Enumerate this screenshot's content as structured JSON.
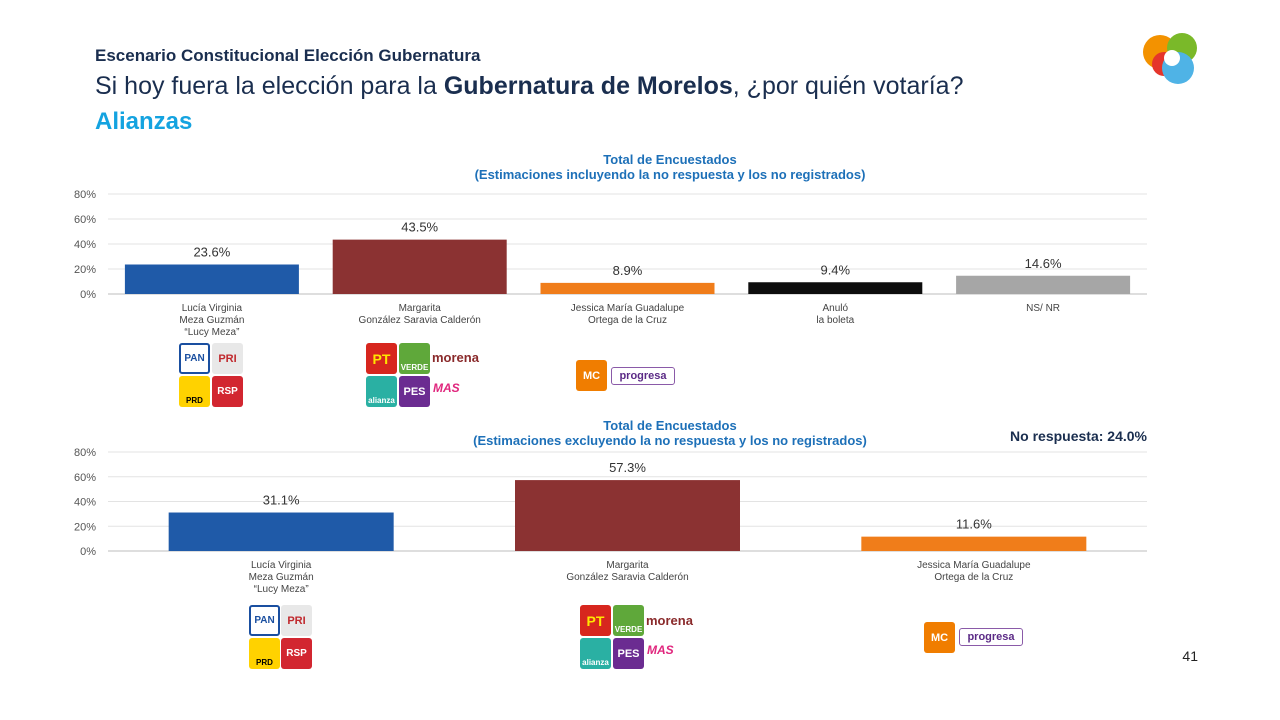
{
  "header": {
    "subtitle": "Escenario Constitucional Elección Gubernatura",
    "question_pre": "Si hoy fuera la elección para la ",
    "question_bold": "Gubernatura de Morelos",
    "question_post": ", ¿por quién votaría?",
    "section": "Alianzas"
  },
  "chart1": {
    "title_line1": "Total de Encuestados",
    "title_line2": "(Estimaciones incluyendo la no respuesta y los no registrados)"
  },
  "chart2": {
    "title_line1": "Total de Encuestados",
    "title_line2": "(Estimaciones excluyendo la no respuesta y los no registrados)",
    "no_response_note": "No respuesta: 24.0%"
  },
  "page_number": "41",
  "logos": {
    "pan": "PAN",
    "pri": "PRI",
    "prd": "PRD",
    "rsp": "RSP",
    "pt": "PT",
    "verde": "VERDE",
    "morena": "morena",
    "alianza": "alianza",
    "pes": "PES",
    "mas": "MAS",
    "mc": "MC",
    "progresa": "progresa"
  },
  "chart_data": [
    {
      "type": "bar",
      "title": "Total de Encuestados (Estimaciones incluyendo la no respuesta y los no registrados)",
      "categories": [
        [
          "Lucía Virginia",
          "Meza Guzmán",
          "“Lucy Meza”"
        ],
        [
          "Margarita",
          "González Saravia Calderón"
        ],
        [
          "Jessica María Guadalupe",
          "Ortega de la Cruz"
        ],
        [
          "Anuló",
          "la boleta"
        ],
        [
          "NS/ NR"
        ]
      ],
      "values": [
        23.6,
        43.5,
        8.9,
        9.4,
        14.6
      ],
      "value_labels": [
        "23.6%",
        "43.5%",
        "8.9%",
        "9.4%",
        "14.6%"
      ],
      "colors": [
        "#1f5aa8",
        "#8b3232",
        "#f07d1a",
        "#0d0d0d",
        "#a6a6a6"
      ],
      "yticks": [
        "80%",
        "60%",
        "40%",
        "20%",
        "0%"
      ],
      "ylim": [
        0,
        80
      ],
      "grid": true
    },
    {
      "type": "bar",
      "title": "Total de Encuestados (Estimaciones excluyendo la no respuesta y los no registrados)",
      "categories": [
        [
          "Lucía Virginia",
          "Meza Guzmán",
          "“Lucy Meza”"
        ],
        [
          "Margarita",
          "González Saravia Calderón"
        ],
        [
          "Jessica María Guadalupe",
          "Ortega de la Cruz"
        ]
      ],
      "values": [
        31.1,
        57.3,
        11.6
      ],
      "value_labels": [
        "31.1%",
        "57.3%",
        "11.6%"
      ],
      "colors": [
        "#1f5aa8",
        "#8b3232",
        "#f07d1a"
      ],
      "yticks": [
        "80%",
        "60%",
        "40%",
        "20%",
        "0%"
      ],
      "ylim": [
        0,
        80
      ],
      "grid": true
    }
  ]
}
